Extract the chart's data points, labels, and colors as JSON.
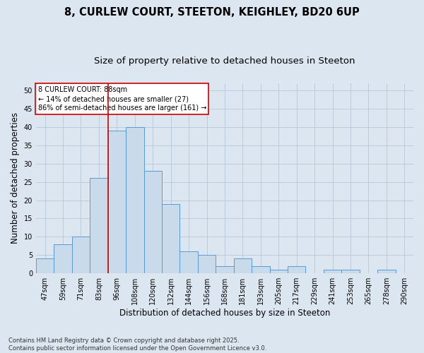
{
  "title_line1": "8, CURLEW COURT, STEETON, KEIGHLEY, BD20 6UP",
  "title_line2": "Size of property relative to detached houses in Steeton",
  "xlabel": "Distribution of detached houses by size in Steeton",
  "ylabel": "Number of detached properties",
  "footnote": "Contains HM Land Registry data © Crown copyright and database right 2025.\nContains public sector information licensed under the Open Government Licence v3.0.",
  "bar_labels": [
    "47sqm",
    "59sqm",
    "71sqm",
    "83sqm",
    "96sqm",
    "108sqm",
    "120sqm",
    "132sqm",
    "144sqm",
    "156sqm",
    "168sqm",
    "181sqm",
    "193sqm",
    "205sqm",
    "217sqm",
    "229sqm",
    "241sqm",
    "253sqm",
    "265sqm",
    "278sqm",
    "290sqm"
  ],
  "bar_values": [
    4,
    8,
    10,
    26,
    39,
    40,
    28,
    19,
    6,
    5,
    2,
    4,
    2,
    1,
    2,
    0,
    1,
    1,
    0,
    1,
    0
  ],
  "bar_color": "#c9daea",
  "bar_edge_color": "#5a9bd5",
  "grid_color": "#b8c8d8",
  "plot_bg_color": "#dce6f0",
  "fig_bg_color": "#dce6f0",
  "annotation_box_text": "8 CURLEW COURT: 88sqm\n← 14% of detached houses are smaller (27)\n86% of semi-detached houses are larger (161) →",
  "annotation_box_color": "#cc0000",
  "vline_color": "#cc0000",
  "vline_x": 3.5,
  "ylim": [
    0,
    52
  ],
  "yticks": [
    0,
    5,
    10,
    15,
    20,
    25,
    30,
    35,
    40,
    45,
    50
  ],
  "title_fontsize": 10.5,
  "subtitle_fontsize": 9.5,
  "axis_label_fontsize": 8.5,
  "tick_fontsize": 7,
  "annotation_fontsize": 7,
  "footnote_fontsize": 6
}
